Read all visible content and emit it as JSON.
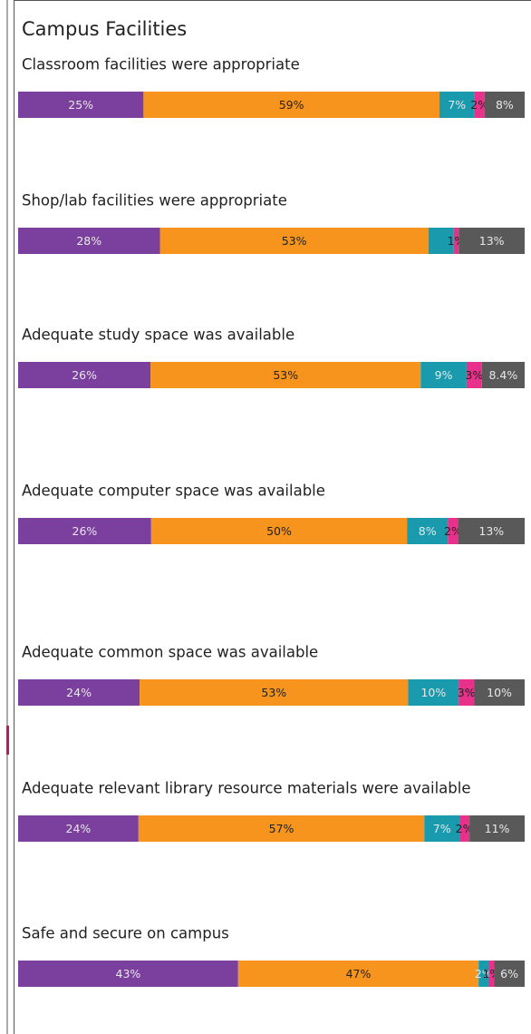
{
  "title": "Campus Facilities",
  "chart_data": [
    {
      "type": "stacked_bar",
      "title": "Classroom facilities were appropriate",
      "values": [
        25,
        59,
        7,
        2,
        8
      ],
      "value_labels": [
        "25%",
        "59%",
        "7%",
        "2%",
        "8%"
      ],
      "colors": [
        "#7b3f9e",
        "#f7941d",
        "#1a9aad",
        "#e8318a",
        "#595959"
      ],
      "xlim": [
        0,
        101
      ]
    },
    {
      "type": "stacked_bar",
      "title": "Shop/lab facilities were appropriate",
      "values": [
        28,
        53,
        5,
        1,
        13
      ],
      "value_labels": [
        "28%",
        "53%",
        null,
        "1%",
        "13%"
      ],
      "colors": [
        "#7b3f9e",
        "#f7941d",
        "#1a9aad",
        "#e8318a",
        "#595959"
      ],
      "xlim": [
        0,
        100
      ]
    },
    {
      "type": "stacked_bar",
      "title": "Adequate study space was available",
      "values": [
        26,
        53,
        9,
        3,
        8.4
      ],
      "value_labels": [
        "26%",
        "53%",
        "9%",
        "3%",
        "8.4%"
      ],
      "colors": [
        "#7b3f9e",
        "#f7941d",
        "#1a9aad",
        "#e8318a",
        "#595959"
      ],
      "xlim": [
        0,
        99.4
      ]
    },
    {
      "type": "stacked_bar",
      "title": "Adequate computer space was available",
      "values": [
        26,
        50,
        8,
        2,
        13
      ],
      "value_labels": [
        "26%",
        "50%",
        "8%",
        "2%",
        "13%"
      ],
      "colors": [
        "#7b3f9e",
        "#f7941d",
        "#1a9aad",
        "#e8318a",
        "#595959"
      ],
      "xlim": [
        0,
        99
      ]
    },
    {
      "type": "stacked_bar",
      "title": "Adequate common space was available",
      "values": [
        24,
        53,
        10,
        3,
        10
      ],
      "value_labels": [
        "24%",
        "53%",
        "10%",
        "3%",
        "10%"
      ],
      "colors": [
        "#7b3f9e",
        "#f7941d",
        "#1a9aad",
        "#e8318a",
        "#595959"
      ],
      "xlim": [
        0,
        100
      ]
    },
    {
      "type": "stacked_bar",
      "title": "Adequate relevant library resource materials were available",
      "values": [
        24,
        57,
        7,
        2,
        11
      ],
      "value_labels": [
        "24%",
        "57%",
        "7%",
        "2%",
        "11%"
      ],
      "colors": [
        "#7b3f9e",
        "#f7941d",
        "#1a9aad",
        "#e8318a",
        "#595959"
      ],
      "xlim": [
        0,
        101
      ]
    },
    {
      "type": "stacked_bar",
      "title": "Safe and secure on campus",
      "values": [
        43,
        47,
        2,
        1,
        6
      ],
      "value_labels": [
        "43%",
        "47%",
        "2%",
        "1%",
        "6%"
      ],
      "colors": [
        "#7b3f9e",
        "#f7941d",
        "#1a9aad",
        "#e8318a",
        "#595959"
      ],
      "xlim": [
        0,
        99
      ]
    }
  ]
}
